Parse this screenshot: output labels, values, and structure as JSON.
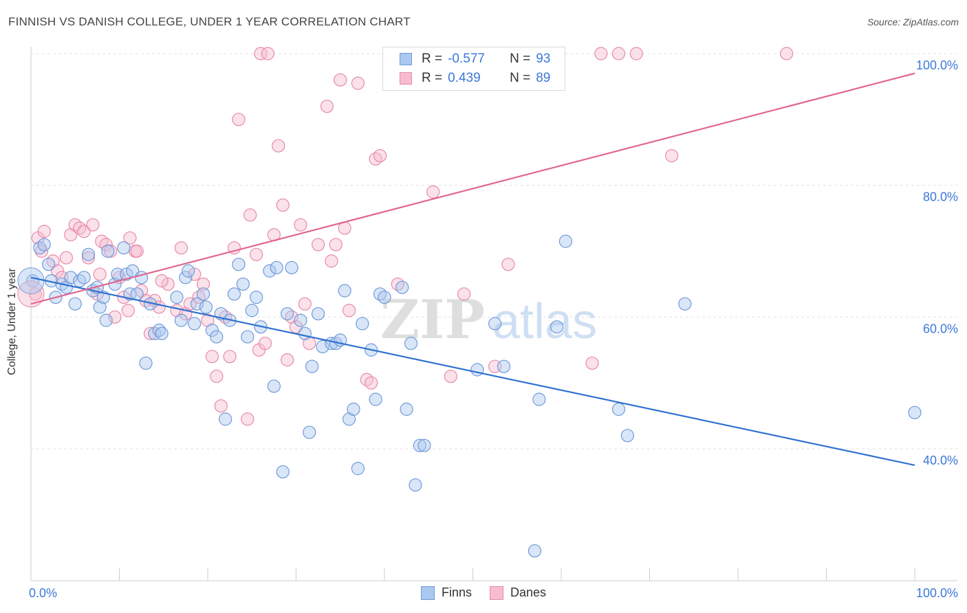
{
  "header": {
    "title": "FINNISH VS DANISH COLLEGE, UNDER 1 YEAR CORRELATION CHART",
    "source": "Source: ZipAtlas.com"
  },
  "legend_top": {
    "rows": [
      {
        "r_label": "R =",
        "r_value": "-0.577",
        "n_label": "N =",
        "n_value": "93"
      },
      {
        "r_label": "R =",
        "r_value": "0.439",
        "n_label": "N =",
        "n_value": "89"
      }
    ]
  },
  "legend_bottom": {
    "finns": "Finns",
    "danes": "Danes"
  },
  "colors": {
    "finns_fill": "#aac8f0",
    "finns_stroke": "#6f9ad8",
    "finns_line": "#2f72d0",
    "danes_fill": "#f7bcd0",
    "danes_stroke": "#e68aa8",
    "danes_line": "#e06690",
    "tick_label": "#3b78d8",
    "grid": "#e3e3e3"
  },
  "chart_data": {
    "type": "scatter",
    "title": "FINNISH VS DANISH COLLEGE, UNDER 1 YEAR CORRELATION CHART",
    "xlabel": "",
    "ylabel": "College, Under 1 year",
    "xlim": [
      0,
      100
    ],
    "ylim": [
      20,
      103
    ],
    "x_tick_labels": [
      "0.0%",
      "100.0%"
    ],
    "y_tick_labels": [
      "40.0%",
      "60.0%",
      "80.0%",
      "100.0%"
    ],
    "y_ticks": [
      40,
      60,
      80,
      100
    ],
    "grid": true,
    "legend_position": "bottom",
    "watermark": "ZIPatlas",
    "series": [
      {
        "name": "Finns",
        "r": -0.577,
        "n": 93,
        "trend": {
          "x": [
            0,
            100
          ],
          "y": [
            66.0,
            37.5
          ]
        },
        "points": [
          [
            0.2,
            65.5
          ],
          [
            1.0,
            70.5
          ],
          [
            1.5,
            71.0
          ],
          [
            2.0,
            68.0
          ],
          [
            2.3,
            65.5
          ],
          [
            2.8,
            63.0
          ],
          [
            3.5,
            65.0
          ],
          [
            4.0,
            64.5
          ],
          [
            4.5,
            66.0
          ],
          [
            5.0,
            62.0
          ],
          [
            5.5,
            65.5
          ],
          [
            6.0,
            66.0
          ],
          [
            6.5,
            69.5
          ],
          [
            7.0,
            64.0
          ],
          [
            7.5,
            64.5
          ],
          [
            7.8,
            61.5
          ],
          [
            8.2,
            63.0
          ],
          [
            8.5,
            59.5
          ],
          [
            8.7,
            70.0
          ],
          [
            9.5,
            65.0
          ],
          [
            9.8,
            66.5
          ],
          [
            10.5,
            70.5
          ],
          [
            10.8,
            66.5
          ],
          [
            11.2,
            63.5
          ],
          [
            11.5,
            67.0
          ],
          [
            12.0,
            63.5
          ],
          [
            12.5,
            66.0
          ],
          [
            13.0,
            53.0
          ],
          [
            13.5,
            62.0
          ],
          [
            14.0,
            57.5
          ],
          [
            14.5,
            58.0
          ],
          [
            14.8,
            57.5
          ],
          [
            16.5,
            63.0
          ],
          [
            17.0,
            59.5
          ],
          [
            17.5,
            66.0
          ],
          [
            17.8,
            67.0
          ],
          [
            18.5,
            59.0
          ],
          [
            18.8,
            62.0
          ],
          [
            19.5,
            63.5
          ],
          [
            20.5,
            58.0
          ],
          [
            21.0,
            57.0
          ],
          [
            21.5,
            60.5
          ],
          [
            22.0,
            44.5
          ],
          [
            22.5,
            59.5
          ],
          [
            23.0,
            63.5
          ],
          [
            23.5,
            68.0
          ],
          [
            24.0,
            65.0
          ],
          [
            24.5,
            57.0
          ],
          [
            25.0,
            61.0
          ],
          [
            25.5,
            63.0
          ],
          [
            26.0,
            58.5
          ],
          [
            27.0,
            67.0
          ],
          [
            27.5,
            49.5
          ],
          [
            27.8,
            67.5
          ],
          [
            28.5,
            36.5
          ],
          [
            29.0,
            60.5
          ],
          [
            29.5,
            67.5
          ],
          [
            30.5,
            59.5
          ],
          [
            31.0,
            57.5
          ],
          [
            31.5,
            42.5
          ],
          [
            31.8,
            52.5
          ],
          [
            32.5,
            60.5
          ],
          [
            33.0,
            55.5
          ],
          [
            34.0,
            56.0
          ],
          [
            34.5,
            56.0
          ],
          [
            35.0,
            56.5
          ],
          [
            35.5,
            64.0
          ],
          [
            36.0,
            44.5
          ],
          [
            36.5,
            46.0
          ],
          [
            37.0,
            37.0
          ],
          [
            37.5,
            59.0
          ],
          [
            38.5,
            55.0
          ],
          [
            39.0,
            47.5
          ],
          [
            39.5,
            63.5
          ],
          [
            42.0,
            64.5
          ],
          [
            42.5,
            46.0
          ],
          [
            43.0,
            56.0
          ],
          [
            43.5,
            34.5
          ],
          [
            44.0,
            40.5
          ],
          [
            44.5,
            40.5
          ],
          [
            50.5,
            52.0
          ],
          [
            52.5,
            59.0
          ],
          [
            53.5,
            52.5
          ],
          [
            57.5,
            47.5
          ],
          [
            57.0,
            24.5
          ],
          [
            59.5,
            58.5
          ],
          [
            60.5,
            71.5
          ],
          [
            66.5,
            46.0
          ],
          [
            67.5,
            42.0
          ],
          [
            74.0,
            62.0
          ],
          [
            100.0,
            45.5
          ],
          [
            19.8,
            61.5
          ],
          [
            40.0,
            63.0
          ]
        ]
      },
      {
        "name": "Danes",
        "r": 0.439,
        "n": 89,
        "trend": {
          "x": [
            0,
            100
          ],
          "y": [
            62.0,
            97.0
          ]
        },
        "points": [
          [
            0.5,
            63.5
          ],
          [
            0.8,
            72.0
          ],
          [
            1.2,
            70.0
          ],
          [
            1.5,
            73.0
          ],
          [
            2.5,
            68.5
          ],
          [
            3.0,
            67.0
          ],
          [
            3.5,
            66.0
          ],
          [
            4.0,
            69.0
          ],
          [
            4.5,
            72.5
          ],
          [
            5.0,
            74.0
          ],
          [
            5.5,
            73.5
          ],
          [
            6.0,
            73.0
          ],
          [
            6.5,
            69.0
          ],
          [
            7.0,
            74.0
          ],
          [
            7.5,
            63.5
          ],
          [
            7.8,
            66.5
          ],
          [
            8.0,
            71.5
          ],
          [
            8.5,
            71.0
          ],
          [
            9.0,
            70.0
          ],
          [
            9.5,
            60.0
          ],
          [
            10.0,
            66.0
          ],
          [
            10.5,
            63.0
          ],
          [
            11.0,
            61.0
          ],
          [
            11.2,
            72.0
          ],
          [
            11.8,
            70.0
          ],
          [
            12.5,
            64.0
          ],
          [
            13.0,
            62.5
          ],
          [
            13.5,
            57.5
          ],
          [
            14.0,
            62.5
          ],
          [
            14.5,
            61.5
          ],
          [
            15.5,
            65.0
          ],
          [
            16.5,
            61.0
          ],
          [
            17.0,
            70.5
          ],
          [
            17.5,
            60.5
          ],
          [
            18.0,
            62.0
          ],
          [
            18.5,
            66.5
          ],
          [
            19.0,
            63.0
          ],
          [
            19.5,
            65.0
          ],
          [
            20.0,
            59.5
          ],
          [
            20.5,
            54.0
          ],
          [
            21.0,
            51.0
          ],
          [
            21.5,
            46.5
          ],
          [
            22.5,
            54.0
          ],
          [
            23.0,
            70.5
          ],
          [
            23.5,
            90.0
          ],
          [
            24.5,
            44.5
          ],
          [
            24.8,
            75.5
          ],
          [
            25.5,
            69.5
          ],
          [
            25.8,
            55.0
          ],
          [
            26.0,
            100.0
          ],
          [
            26.5,
            56.0
          ],
          [
            26.8,
            100.0
          ],
          [
            27.5,
            72.5
          ],
          [
            28.0,
            86.0
          ],
          [
            28.5,
            77.0
          ],
          [
            29.0,
            53.5
          ],
          [
            29.5,
            60.0
          ],
          [
            30.0,
            58.5
          ],
          [
            30.5,
            74.0
          ],
          [
            31.0,
            62.0
          ],
          [
            31.5,
            56.0
          ],
          [
            32.5,
            71.0
          ],
          [
            33.5,
            92.0
          ],
          [
            34.0,
            68.5
          ],
          [
            34.5,
            71.0
          ],
          [
            35.0,
            96.0
          ],
          [
            35.5,
            73.5
          ],
          [
            36.0,
            61.0
          ],
          [
            37.0,
            95.5
          ],
          [
            38.0,
            50.5
          ],
          [
            39.0,
            84.0
          ],
          [
            39.5,
            84.5
          ],
          [
            41.5,
            65.0
          ],
          [
            43.5,
            100.0
          ],
          [
            45.5,
            79.0
          ],
          [
            47.5,
            51.0
          ],
          [
            49.0,
            63.5
          ],
          [
            52.5,
            52.5
          ],
          [
            54.0,
            68.0
          ],
          [
            63.5,
            53.0
          ],
          [
            64.5,
            100.0
          ],
          [
            66.5,
            100.0
          ],
          [
            68.5,
            100.0
          ],
          [
            72.5,
            84.5
          ],
          [
            85.5,
            100.0
          ],
          [
            38.5,
            50.0
          ],
          [
            12.0,
            70.0
          ],
          [
            22.0,
            60.0
          ],
          [
            14.8,
            65.5
          ]
        ]
      }
    ]
  }
}
